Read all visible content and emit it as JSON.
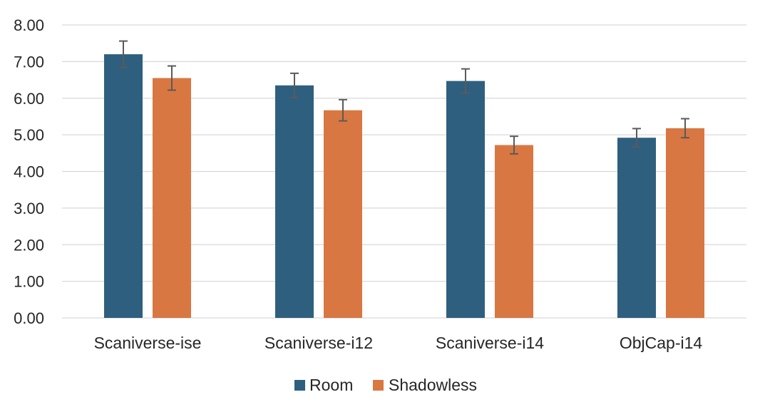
{
  "chart_data": {
    "type": "bar",
    "title": "",
    "xlabel": "",
    "ylabel": "",
    "categories": [
      "Scaniverse-ise",
      "Scaniverse-i12",
      "Scaniverse-i14",
      "ObjCap-i14"
    ],
    "series": [
      {
        "name": "Room",
        "values": [
          7.2,
          6.35,
          6.47,
          4.92
        ],
        "errors": [
          0.36,
          0.33,
          0.33,
          0.25
        ],
        "color": "#2e5f7f"
      },
      {
        "name": "Shadowless",
        "values": [
          6.55,
          5.67,
          4.72,
          5.18
        ],
        "errors": [
          0.33,
          0.29,
          0.24,
          0.26
        ],
        "color": "#d97742"
      }
    ],
    "ylim": [
      0,
      8
    ],
    "yticks": [
      "0.00",
      "1.00",
      "2.00",
      "3.00",
      "4.00",
      "5.00",
      "6.00",
      "7.00",
      "8.00"
    ],
    "grid": true,
    "legend": "bottom-center",
    "error_bars": true,
    "gridline_color": "#d9d9d9",
    "errorbar_color": "#5a5a5a"
  }
}
